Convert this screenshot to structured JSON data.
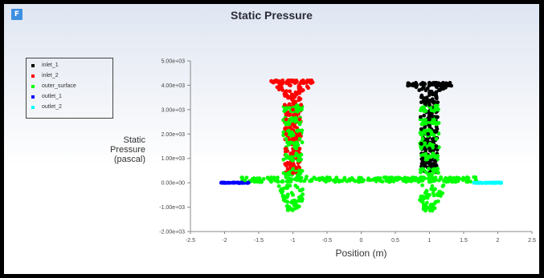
{
  "window": {
    "icon_letter": "F",
    "title": "Static Pressure"
  },
  "legend": {
    "items": [
      {
        "label": "inlet_1",
        "color": "#000000"
      },
      {
        "label": "inlet_2",
        "color": "#ff0000"
      },
      {
        "label": "outer_surface",
        "color": "#00ff00"
      },
      {
        "label": "outlet_1",
        "color": "#0000ff"
      },
      {
        "label": "outlet_2",
        "color": "#00ffff"
      }
    ]
  },
  "chart_data": {
    "type": "scatter",
    "title": "Static Pressure",
    "xlabel": "Position (m)",
    "ylabel": [
      "Static",
      "Pressure",
      "(pascal)"
    ],
    "xlim": [
      -2.5,
      2.5
    ],
    "ylim": [
      -2000,
      5000
    ],
    "x_ticks": [
      "-2.5",
      "-2",
      "-1.5",
      "-1",
      "-0.5",
      "0",
      "0.5",
      "1",
      "1.5",
      "2",
      "2.5"
    ],
    "x_tick_values": [
      -2.5,
      -2,
      -1.5,
      -1,
      -0.5,
      0,
      0.5,
      1,
      1.5,
      2,
      2.5
    ],
    "y_ticks": [
      "5.00e+03",
      "4.00e+03",
      "3.00e+03",
      "2.00e+03",
      "1.00e+03",
      "0.00e+00",
      "-1.00e+03",
      "-2.00e+03"
    ],
    "y_tick_values": [
      5000,
      4000,
      3000,
      2000,
      1000,
      0,
      -1000,
      -2000
    ],
    "grid": false,
    "legend_position": "top-left",
    "series": [
      {
        "name": "inlet_1",
        "color": "#000000",
        "values": [
          [
            0.8,
            4100
          ],
          [
            0.9,
            4100
          ],
          [
            1.0,
            4100
          ],
          [
            1.1,
            4100
          ],
          [
            1.2,
            4100
          ],
          [
            1.3,
            4100
          ],
          [
            0.85,
            3800
          ],
          [
            1.0,
            3700
          ],
          [
            1.15,
            3800
          ],
          [
            0.88,
            3300
          ],
          [
            1.0,
            3200
          ],
          [
            1.12,
            3300
          ],
          [
            0.87,
            2700
          ],
          [
            1.0,
            2600
          ],
          [
            1.1,
            2700
          ],
          [
            0.88,
            2200
          ],
          [
            0.98,
            2000
          ],
          [
            1.1,
            2100
          ],
          [
            0.88,
            1600
          ],
          [
            1.0,
            1400
          ],
          [
            1.1,
            1500
          ],
          [
            0.9,
            1000
          ],
          [
            1.0,
            800
          ],
          [
            1.08,
            900
          ]
        ]
      },
      {
        "name": "inlet_2",
        "color": "#ff0000",
        "values": [
          [
            -1.25,
            4200
          ],
          [
            -1.15,
            4200
          ],
          [
            -1.05,
            4200
          ],
          [
            -0.95,
            4200
          ],
          [
            -0.85,
            4200
          ],
          [
            -0.75,
            4200
          ],
          [
            -1.15,
            3800
          ],
          [
            -1.0,
            3600
          ],
          [
            -0.85,
            3800
          ],
          [
            -1.12,
            3200
          ],
          [
            -1.0,
            3000
          ],
          [
            -0.88,
            3200
          ],
          [
            -1.1,
            2600
          ],
          [
            -1.0,
            2400
          ],
          [
            -0.9,
            2600
          ],
          [
            -1.1,
            2000
          ],
          [
            -1.0,
            1800
          ],
          [
            -0.9,
            2000
          ],
          [
            -1.1,
            1400
          ],
          [
            -1.0,
            1200
          ],
          [
            -0.9,
            1400
          ],
          [
            -1.05,
            800
          ],
          [
            -0.95,
            600
          ],
          [
            -1.0,
            400
          ]
        ]
      },
      {
        "name": "outer_surface",
        "color": "#00ff00",
        "values": [
          [
            -1.7,
            100
          ],
          [
            -1.5,
            150
          ],
          [
            -1.3,
            180
          ],
          [
            -0.8,
            250
          ],
          [
            -0.5,
            220
          ],
          [
            0,
            200
          ],
          [
            0.5,
            200
          ],
          [
            0.8,
            200
          ],
          [
            1.3,
            150
          ],
          [
            1.6,
            50
          ],
          [
            -1.1,
            3000
          ],
          [
            -0.9,
            3000
          ],
          [
            -1.1,
            2400
          ],
          [
            -0.9,
            2400
          ],
          [
            -1.1,
            1800
          ],
          [
            -0.9,
            1800
          ],
          [
            -1.05,
            1000
          ],
          [
            -0.95,
            1200
          ],
          [
            0.9,
            3000
          ],
          [
            1.1,
            3000
          ],
          [
            0.9,
            2400
          ],
          [
            1.1,
            2400
          ],
          [
            0.9,
            1800
          ],
          [
            1.1,
            1800
          ],
          [
            0.95,
            1000
          ],
          [
            1.05,
            1200
          ],
          [
            -1.0,
            -500
          ],
          [
            -0.95,
            -900
          ],
          [
            -1.05,
            -1100
          ],
          [
            1.0,
            -500
          ],
          [
            1.05,
            -900
          ],
          [
            0.95,
            -1100
          ]
        ]
      },
      {
        "name": "outlet_1",
        "color": "#0000ff",
        "values": [
          [
            -2.05,
            0
          ],
          [
            -1.95,
            0
          ],
          [
            -1.85,
            0
          ],
          [
            -1.75,
            0
          ],
          [
            -1.65,
            0
          ]
        ]
      },
      {
        "name": "outlet_2",
        "color": "#00ffff",
        "values": [
          [
            1.65,
            0
          ],
          [
            1.75,
            0
          ],
          [
            1.85,
            0
          ],
          [
            1.95,
            0
          ],
          [
            2.05,
            0
          ]
        ]
      }
    ]
  }
}
